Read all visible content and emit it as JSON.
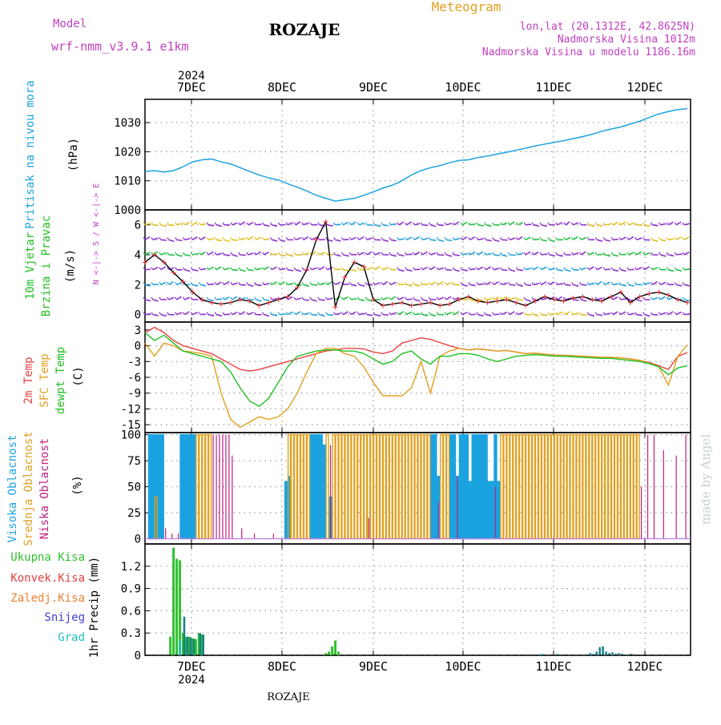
{
  "header": {
    "model_label": "Model",
    "model_name": "wrf-nmm_v3.9.1  e1km",
    "location_title": "ROZAJE",
    "meteogram_label": "Meteogram",
    "coords": "lon,lat (20.1312E, 42.8625N)",
    "elevation": "Nadmorska Visina 1012m",
    "model_elevation": "Nadmorska Visina u modelu 1186.16m",
    "year_top": "2024",
    "year_bottom": "2024",
    "footer_location": "ROZAJE",
    "watermark": "made by Angel"
  },
  "colors": {
    "pressure": "#1ba3e0",
    "magenta": "#c040c0",
    "temp2m": "#e84040",
    "sfc": "#e0a020",
    "dew": "#20c020",
    "high_cloud": "#1ba3e0",
    "mid_cloud": "#e0a020",
    "low_cloud": "#c02080",
    "precip_total": "#30c030",
    "precip_conv": "#e04040",
    "precip_strat": "#f08030",
    "snow": "#4040d0",
    "hail": "#20c0c0",
    "windspeed": "#000000",
    "wind_dir": "#e83030"
  },
  "days": [
    "7DEC",
    "8DEC",
    "9DEC",
    "10DEC",
    "11DEC",
    "12DEC"
  ],
  "chart_data": [
    {
      "type": "line",
      "panel": "pressure",
      "ylabel_side": "Pritisak na nivou mora",
      "ylabel": "(hPa)",
      "ylim": [
        1000,
        1038
      ],
      "yticks": [
        1000,
        1010,
        1020,
        1030
      ],
      "x": [
        0,
        3,
        6,
        9,
        12,
        15,
        18,
        21,
        24,
        27,
        30,
        33,
        36,
        39,
        42,
        45,
        48,
        51,
        54,
        57,
        60,
        63,
        66,
        69,
        72,
        75,
        78,
        81,
        84,
        87,
        90,
        93,
        96,
        99,
        102,
        105,
        108,
        111,
        114,
        117,
        120,
        123,
        126,
        129,
        132,
        135,
        138,
        141,
        144,
        147,
        150,
        153,
        156,
        159,
        162,
        165,
        168,
        171
      ],
      "series": [
        {
          "values": [
            1013.2,
            1013.5,
            1013.0,
            1013.5,
            1014.8,
            1016.5,
            1017.2,
            1017.5,
            1016.5,
            1015.8,
            1014.5,
            1013.2,
            1012.0,
            1011.0,
            1010.3,
            1009.0,
            1007.8,
            1006.5,
            1005.0,
            1004.0,
            1003.0,
            1003.5,
            1004.0,
            1005.0,
            1006.2,
            1007.5,
            1008.5,
            1010.0,
            1012.0,
            1013.5,
            1014.5,
            1015.2,
            1016.2,
            1017.0,
            1017.2,
            1018.0,
            1018.5,
            1019.2,
            1019.8,
            1020.5,
            1021.2,
            1022.0,
            1022.6,
            1023.2,
            1023.8,
            1024.5,
            1025.2,
            1026.0,
            1027.0,
            1027.8,
            1028.5,
            1029.5,
            1030.5,
            1031.8,
            1033.0,
            1033.8,
            1034.5,
            1034.8
          ]
        }
      ]
    },
    {
      "type": "line",
      "panel": "wind",
      "ylabel_side": [
        "10m Vjetar",
        "Brzina i Pravac"
      ],
      "ylabel": "(m/s)",
      "compass_label": "N <-|-> S / W <-|-> E",
      "ylim": [
        -0.5,
        7
      ],
      "yticks": [
        0,
        2,
        4,
        6
      ],
      "barb_rows": [
        0,
        1,
        2,
        3,
        4,
        5,
        6
      ],
      "x": [
        0,
        3,
        6,
        9,
        12,
        15,
        18,
        21,
        24,
        27,
        30,
        33,
        36,
        39,
        42,
        45,
        48,
        51,
        54,
        57,
        60,
        63,
        66,
        69,
        72,
        75,
        78,
        81,
        84,
        87,
        90,
        93,
        96,
        99,
        102,
        105,
        108,
        111,
        114,
        117,
        120,
        123,
        126,
        129,
        132,
        135,
        138,
        141,
        144,
        147,
        150,
        153,
        156,
        159,
        162,
        165,
        168,
        171
      ],
      "series": [
        {
          "name": "speed",
          "values": [
            3.5,
            4.0,
            3.5,
            2.8,
            2.2,
            1.5,
            1.0,
            0.8,
            0.7,
            0.8,
            1.0,
            0.9,
            0.6,
            0.8,
            1.0,
            1.2,
            1.8,
            3.0,
            5.0,
            6.2,
            0.5,
            2.5,
            3.5,
            3.2,
            1.0,
            0.6,
            0.7,
            0.8,
            0.6,
            0.7,
            0.8,
            0.6,
            0.7,
            1.0,
            1.2,
            0.9,
            0.8,
            0.9,
            1.0,
            0.8,
            0.6,
            0.9,
            1.2,
            1.0,
            0.9,
            1.1,
            1.2,
            1.0,
            0.9,
            1.2,
            1.5,
            0.8,
            1.2,
            1.4,
            1.5,
            1.3,
            1.0,
            0.8
          ]
        }
      ]
    },
    {
      "type": "line",
      "panel": "temperature",
      "ylabel_side": [
        "2m Temp",
        "SFC Temp",
        "dewpt Temp"
      ],
      "ylabel": "(C)",
      "ylim": [
        -16.5,
        4.5
      ],
      "yticks": [
        3,
        0,
        -3,
        -6,
        -9,
        -12,
        -15
      ],
      "x": [
        0,
        3,
        6,
        9,
        12,
        15,
        18,
        21,
        24,
        27,
        30,
        33,
        36,
        39,
        42,
        45,
        48,
        51,
        54,
        57,
        60,
        63,
        66,
        69,
        72,
        75,
        78,
        81,
        84,
        87,
        90,
        93,
        96,
        99,
        102,
        105,
        108,
        111,
        114,
        117,
        120,
        123,
        126,
        129,
        132,
        135,
        138,
        141,
        144,
        147,
        150,
        153,
        156,
        159,
        162,
        165,
        168,
        171
      ],
      "series": [
        {
          "name": "2m Temp",
          "values": [
            2.5,
            3.5,
            2.5,
            1.0,
            0.0,
            -0.5,
            -1.0,
            -1.5,
            -2.5,
            -3.5,
            -4.5,
            -4.8,
            -4.5,
            -4.0,
            -3.5,
            -3.0,
            -2.5,
            -2.0,
            -1.5,
            -1.0,
            -0.8,
            -0.5,
            -0.5,
            -0.6,
            -1.2,
            -1.5,
            -1.0,
            0.5,
            1.0,
            1.5,
            1.2,
            0.6,
            0.0,
            -0.5,
            -0.8,
            -0.6,
            -0.8,
            -1.0,
            -0.9,
            -1.2,
            -1.5,
            -1.4,
            -1.6,
            -1.8,
            -1.8,
            -1.9,
            -2.0,
            -2.1,
            -2.2,
            -2.2,
            -2.3,
            -2.5,
            -2.8,
            -3.2,
            -3.8,
            -4.5,
            -2.0,
            -1.3
          ]
        },
        {
          "name": "SFC Temp",
          "values": [
            0.5,
            -2.0,
            0.5,
            0.0,
            -1.0,
            -1.2,
            -1.5,
            -2.0,
            -9.0,
            -14.0,
            -15.5,
            -14.5,
            -13.5,
            -14.0,
            -13.5,
            -12.0,
            -9.0,
            -5.0,
            -1.5,
            -0.5,
            -0.5,
            -1.5,
            -2.0,
            -4.0,
            -7.0,
            -9.5,
            -9.5,
            -9.5,
            -8.0,
            -3.0,
            -9.0,
            -2.0,
            -1.0,
            -0.5,
            -0.8,
            -0.6,
            -0.8,
            -1.0,
            -0.9,
            -1.2,
            -1.5,
            -1.4,
            -1.6,
            -1.8,
            -1.8,
            -1.9,
            -2.0,
            -2.1,
            -2.2,
            -2.2,
            -2.3,
            -2.5,
            -2.8,
            -3.3,
            -4.0,
            -7.5,
            -2.0,
            0.2
          ]
        },
        {
          "name": "dewpt Temp",
          "values": [
            2.5,
            1.0,
            2.0,
            0.5,
            -1.0,
            -1.5,
            -2.0,
            -2.5,
            -3.0,
            -5.0,
            -8.0,
            -10.5,
            -11.5,
            -10.0,
            -7.0,
            -4.0,
            -2.0,
            -1.5,
            -1.0,
            -0.8,
            -0.8,
            -1.0,
            -1.0,
            -1.5,
            -2.5,
            -3.5,
            -3.0,
            -1.5,
            -1.0,
            -2.5,
            -3.5,
            -2.0,
            -2.0,
            -1.5,
            -1.5,
            -1.8,
            -2.5,
            -3.0,
            -2.5,
            -2.0,
            -1.8,
            -1.7,
            -1.8,
            -2.0,
            -2.0,
            -2.1,
            -2.2,
            -2.3,
            -2.4,
            -2.4,
            -2.6,
            -2.8,
            -3.0,
            -3.4,
            -4.0,
            -5.5,
            -4.2,
            -3.8
          ]
        }
      ]
    },
    {
      "type": "bar",
      "panel": "cloud",
      "ylabel_side": [
        "Visoka Oblacnost",
        "Srednja Oblacnost",
        "Niska Oblacnost"
      ],
      "ylabel": "(%)",
      "ylim": [
        -5,
        102
      ],
      "yticks": [
        0,
        25,
        50,
        75,
        100
      ],
      "series": [
        {
          "name": "Visoka Oblacnost",
          "x": [
            1,
            2,
            3,
            4,
            5,
            11,
            12,
            13,
            14,
            15,
            44,
            45,
            52,
            53,
            54,
            55,
            56,
            58,
            90,
            91,
            92,
            96,
            97,
            98,
            99,
            100,
            101,
            102,
            103,
            104,
            105,
            106,
            107,
            108,
            109,
            110,
            111
          ],
          "values": [
            100,
            100,
            100,
            100,
            100,
            100,
            100,
            100,
            100,
            100,
            55,
            60,
            100,
            100,
            100,
            100,
            90,
            40,
            100,
            100,
            60,
            100,
            100,
            60,
            100,
            100,
            100,
            55,
            100,
            100,
            100,
            100,
            100,
            55,
            55,
            100,
            55
          ]
        },
        {
          "name": "Srednja Oblacnost",
          "x": [
            3,
            16,
            17,
            18,
            19,
            20,
            45,
            46,
            47,
            48,
            49,
            50,
            51,
            57,
            59,
            60,
            61,
            62,
            63,
            64,
            65,
            66,
            67,
            68,
            69,
            70,
            71,
            72,
            73,
            74,
            75,
            76,
            77,
            78,
            79,
            80,
            81,
            82,
            83,
            84,
            85,
            86,
            87,
            88,
            89,
            93,
            94,
            95,
            112,
            113,
            114,
            115,
            116,
            117,
            118,
            119,
            120,
            121,
            122,
            123,
            124,
            125,
            126,
            127,
            128,
            129,
            130,
            131,
            132,
            133,
            134,
            135,
            136,
            137,
            138,
            139,
            140,
            141,
            142,
            143,
            144,
            145,
            146,
            147,
            148,
            149,
            150,
            151,
            152,
            153,
            154,
            155
          ],
          "values": [
            40,
            100,
            100,
            100,
            100,
            100,
            100,
            100,
            100,
            100,
            100,
            100,
            100,
            100,
            100,
            100,
            100,
            100,
            100,
            100,
            100,
            100,
            100,
            100,
            100,
            100,
            100,
            100,
            100,
            100,
            100,
            100,
            100,
            100,
            100,
            100,
            100,
            100,
            100,
            100,
            100,
            100,
            100,
            100,
            100,
            100,
            100,
            100,
            100,
            100,
            100,
            100,
            100,
            100,
            100,
            100,
            100,
            100,
            100,
            100,
            100,
            100,
            100,
            100,
            100,
            100,
            100,
            100,
            100,
            100,
            100,
            100,
            100,
            100,
            100,
            100,
            100,
            100,
            100,
            100,
            100,
            100,
            100,
            100,
            100,
            100,
            100,
            100,
            100,
            100,
            100,
            100
          ]
        },
        {
          "name": "Niska Oblacnost",
          "x": [
            6,
            8,
            10,
            21,
            22,
            23,
            24,
            25,
            26,
            27,
            30,
            34,
            40,
            58,
            70,
            92,
            98,
            110,
            156,
            158,
            160,
            163,
            167,
            170
          ],
          "values": [
            10,
            5,
            5,
            100,
            100,
            100,
            100,
            100,
            100,
            80,
            10,
            5,
            5,
            90,
            20,
            35,
            60,
            50,
            50,
            100,
            100,
            85,
            80,
            100
          ]
        }
      ]
    },
    {
      "type": "bar",
      "panel": "precipitation",
      "ylabel_side": [
        "Ukupna Kisa",
        "Konvek.Kisa",
        "Zaledj.Kisa",
        "Snijeg",
        "Grad"
      ],
      "ylabel": "1hr Precip (mm)",
      "ylim": [
        0,
        1.5
      ],
      "yticks": [
        0,
        0.3,
        0.6,
        0.9,
        1.2
      ],
      "series": [
        {
          "name": "Ukupna Kisa",
          "x": [
            8,
            9,
            10,
            11,
            12,
            13,
            14,
            15,
            16,
            17,
            18,
            57,
            58,
            59,
            60,
            61
          ],
          "values": [
            0.25,
            1.45,
            1.3,
            1.28,
            0.3,
            0.25,
            0.25,
            0.23,
            0.22,
            0.3,
            0.28,
            0.03,
            0.05,
            0.12,
            0.2,
            0.05
          ]
        },
        {
          "name": "Snijeg",
          "x": [
            12,
            13,
            14,
            15,
            17,
            18,
            140,
            141,
            142,
            143,
            144,
            145,
            146,
            147,
            148,
            149,
            150,
            151,
            152,
            153
          ],
          "values": [
            0.52,
            0.25,
            0.24,
            0.22,
            0.3,
            0.28,
            0.03,
            0.02,
            0.05,
            0.11,
            0.12,
            0.05,
            0.03,
            0.04,
            0.02,
            0.03,
            0.02,
            0.01,
            0.01,
            0.02
          ]
        },
        {
          "name": "Grad",
          "x": [
            11,
            125,
            130
          ],
          "values": [
            0.2,
            0.02,
            0.02
          ]
        }
      ]
    }
  ]
}
